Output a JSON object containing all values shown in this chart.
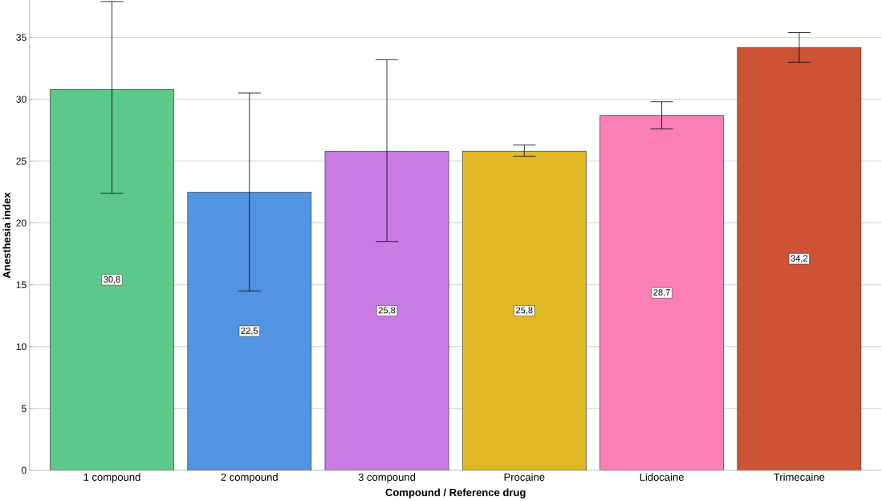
{
  "chart_data": {
    "type": "bar",
    "xlabel": "Compound / Reference drug",
    "ylabel": "Anesthesia index",
    "categories": [
      "1 compound",
      "2 compound",
      "3 compound",
      "Procaine",
      "Lidocaine",
      "Trimecaine"
    ],
    "values": [
      30.8,
      22.5,
      25.8,
      25.8,
      28.7,
      34.2
    ],
    "colors": [
      "#5cc98a",
      "#5294e2",
      "#c97be3",
      "#e0b824",
      "#fb7fb4",
      "#cd5236"
    ],
    "errors": [
      [
        22.4,
        37.9
      ],
      [
        14.5,
        30.5
      ],
      [
        18.5,
        33.2
      ],
      [
        25.4,
        26.3
      ],
      [
        27.6,
        29.8
      ],
      [
        33.0,
        35.4
      ]
    ],
    "value_labels": [
      "30,8",
      "22,5",
      "25,8",
      "25,8",
      "28,7",
      "34,2"
    ],
    "ylim": [
      0,
      38
    ],
    "yticks": [
      0,
      5,
      10,
      15,
      20,
      25,
      30,
      35
    ],
    "grid": "y"
  }
}
